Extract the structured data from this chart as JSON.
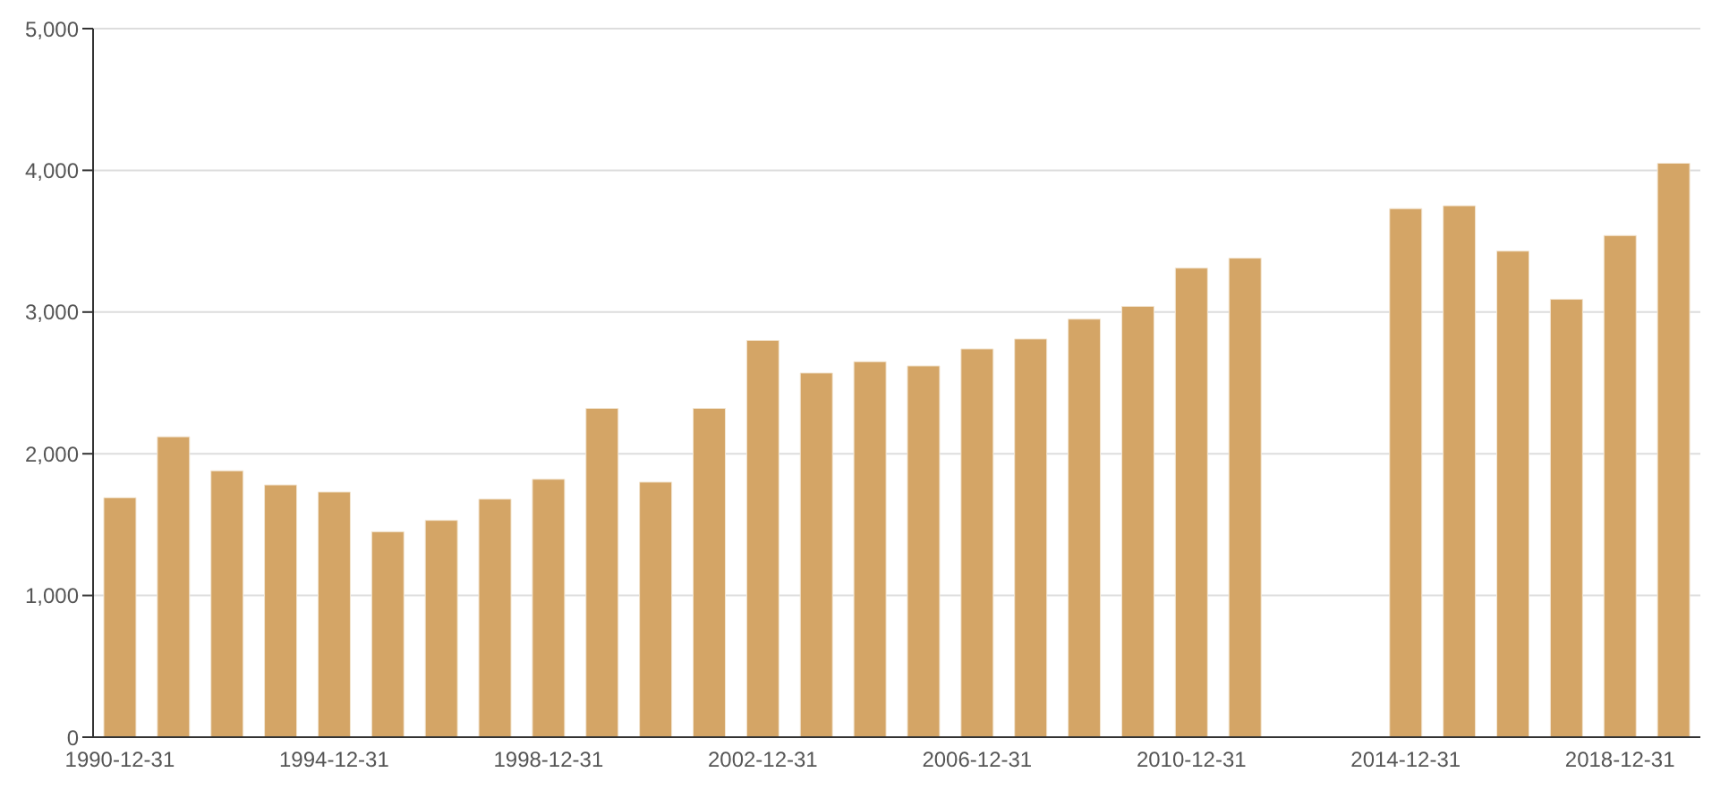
{
  "chart_data": {
    "type": "bar",
    "categories": [
      "1990-12-31",
      null,
      null,
      null,
      "1994-12-31",
      null,
      null,
      null,
      "1998-12-31",
      null,
      null,
      null,
      "2002-12-31",
      null,
      null,
      null,
      "2006-12-31",
      null,
      null,
      null,
      "2010-12-31",
      null,
      null,
      null,
      "2014-12-31",
      null,
      null,
      null,
      "2018-12-31",
      null
    ],
    "values": [
      1690,
      2120,
      1880,
      1780,
      1730,
      1450,
      1530,
      1680,
      1820,
      2320,
      1800,
      2320,
      2800,
      2570,
      2650,
      2620,
      2740,
      2810,
      2950,
      3040,
      3310,
      3380,
      null,
      null,
      3730,
      3750,
      3430,
      3090,
      3540,
      4050
    ],
    "color": "#d4a566",
    "ylim": [
      0,
      5000
    ],
    "yticks": [
      0,
      {
        "value": 1000,
        "label": "1,000"
      },
      {
        "value": 2000,
        "label": "2,000"
      },
      {
        "value": 3000,
        "label": "3,000"
      },
      {
        "value": 4000,
        "label": "4,000"
      },
      {
        "value": 5000,
        "label": "5,000"
      }
    ],
    "grid": "y"
  }
}
